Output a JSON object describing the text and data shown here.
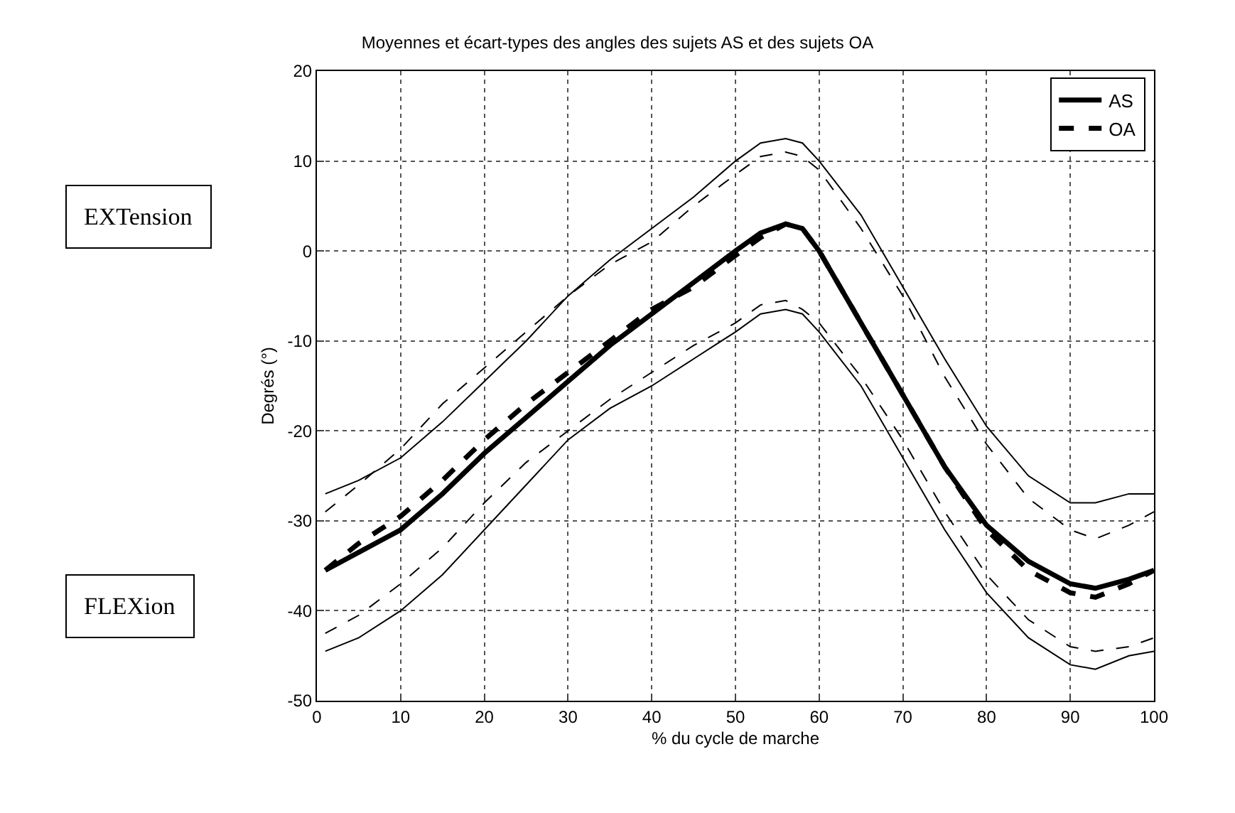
{
  "chart_data": {
    "type": "line",
    "title": "Moyennes et écart-types des angles des sujets AS et des sujets OA",
    "xlabel": "% du cycle de marche",
    "ylabel": "Degrés (°)",
    "x": [
      1,
      5,
      10,
      15,
      20,
      25,
      30,
      35,
      40,
      45,
      50,
      53,
      56,
      58,
      60,
      65,
      70,
      75,
      80,
      85,
      90,
      93,
      97,
      100
    ],
    "series": [
      {
        "name": "AS",
        "color": "#000000",
        "line_style": "solid",
        "values": [
          -35.5,
          -33.5,
          -31,
          -27,
          -22.5,
          -18.5,
          -14.5,
          -10.5,
          -7,
          -3.5,
          0,
          2,
          3,
          2.5,
          0,
          -8,
          -16,
          -24,
          -30.5,
          -34.5,
          -37,
          -37.5,
          -36.5,
          -35.5
        ]
      },
      {
        "name": "OA",
        "color": "#000000",
        "line_style": "dashed",
        "values": [
          -35.5,
          -32.5,
          -29.5,
          -25.5,
          -21,
          -17,
          -13.5,
          -10,
          -6.5,
          -4,
          -0.5,
          1.5,
          3,
          2.5,
          0,
          -8,
          -16,
          -24,
          -31,
          -35.5,
          -38,
          -38.5,
          -37,
          -35.5
        ]
      },
      {
        "color": "#000000",
        "line_style": "solid",
        "values": [
          -44.5,
          -43,
          -40,
          -36,
          -31,
          -26,
          -21,
          -17.5,
          -15,
          -12,
          -9,
          -7,
          -6.5,
          -7,
          -9,
          -15,
          -23,
          -31,
          -38,
          -43,
          -46,
          -46.5,
          -45,
          -44.5
        ]
      },
      {
        "color": "#000000",
        "line_style": "solid",
        "values": [
          -27,
          -25.5,
          -23,
          -19,
          -14.5,
          -10,
          -5,
          -1,
          2.5,
          6,
          10,
          12,
          12.5,
          12,
          10,
          4,
          -4,
          -12,
          -19.5,
          -25,
          -28,
          -28,
          -27,
          -27
        ]
      },
      {
        "color": "#000000",
        "line_style": "dashed",
        "values": [
          -42.5,
          -40.5,
          -37,
          -33,
          -28,
          -23.5,
          -20,
          -16.5,
          -13.5,
          -10.5,
          -8,
          -6,
          -5.5,
          -6.5,
          -8,
          -14,
          -21,
          -29,
          -36,
          -41,
          -44,
          -44.5,
          -44,
          -43
        ]
      },
      {
        "color": "#000000",
        "line_style": "dashed",
        "values": [
          -29,
          -26,
          -22,
          -17,
          -13,
          -9,
          -5,
          -1.5,
          1,
          5,
          8.5,
          10.5,
          11,
          10.5,
          9,
          2.5,
          -5,
          -14,
          -21.5,
          -27.5,
          -31,
          -32,
          -30.5,
          -29
        ]
      }
    ],
    "xlim": [
      0,
      100
    ],
    "xticks": [
      0,
      10,
      20,
      30,
      40,
      50,
      60,
      70,
      80,
      90,
      100
    ],
    "ylim": [
      -50,
      20
    ],
    "yticks": [
      -50,
      -40,
      -30,
      -20,
      -10,
      0,
      10,
      20
    ],
    "grid": true,
    "legend": "top right",
    "marker": "none",
    "annotations": [
      "EXTension",
      "FLEXion"
    ]
  }
}
